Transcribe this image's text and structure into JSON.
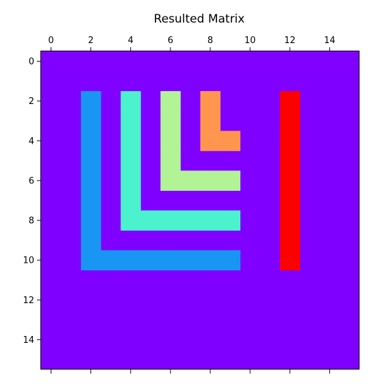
{
  "chart_data": {
    "type": "heatmap",
    "title": "Resulted Matrix",
    "xlabel": "",
    "ylabel": "",
    "rows": 16,
    "cols": 16,
    "x_ticks": [
      0,
      2,
      4,
      6,
      8,
      10,
      12,
      14
    ],
    "y_ticks": [
      0,
      2,
      4,
      6,
      8,
      10,
      12,
      14
    ],
    "x_tick_labels": [
      "0",
      "2",
      "4",
      "6",
      "8",
      "10",
      "12",
      "14"
    ],
    "y_tick_labels": [
      "0",
      "2",
      "4",
      "6",
      "8",
      "10",
      "12",
      "14"
    ],
    "x_axis_position": "top",
    "colormap": "rainbow",
    "grid": false,
    "background_value": 0,
    "value_colors": {
      "0": "#8000ff",
      "1": "#1996f3",
      "2": "#4cf2ce",
      "3": "#b2f396",
      "4": "#ff964f",
      "5": "#ff0000"
    },
    "nonzero_cells": [
      {
        "row": 2,
        "col": 2,
        "value": 1
      },
      {
        "row": 3,
        "col": 2,
        "value": 1
      },
      {
        "row": 4,
        "col": 2,
        "value": 1
      },
      {
        "row": 5,
        "col": 2,
        "value": 1
      },
      {
        "row": 6,
        "col": 2,
        "value": 1
      },
      {
        "row": 7,
        "col": 2,
        "value": 1
      },
      {
        "row": 8,
        "col": 2,
        "value": 1
      },
      {
        "row": 9,
        "col": 2,
        "value": 1
      },
      {
        "row": 10,
        "col": 2,
        "value": 1
      },
      {
        "row": 10,
        "col": 3,
        "value": 1
      },
      {
        "row": 10,
        "col": 4,
        "value": 1
      },
      {
        "row": 10,
        "col": 5,
        "value": 1
      },
      {
        "row": 10,
        "col": 6,
        "value": 1
      },
      {
        "row": 10,
        "col": 7,
        "value": 1
      },
      {
        "row": 10,
        "col": 8,
        "value": 1
      },
      {
        "row": 10,
        "col": 9,
        "value": 1
      },
      {
        "row": 2,
        "col": 4,
        "value": 2
      },
      {
        "row": 3,
        "col": 4,
        "value": 2
      },
      {
        "row": 4,
        "col": 4,
        "value": 2
      },
      {
        "row": 5,
        "col": 4,
        "value": 2
      },
      {
        "row": 6,
        "col": 4,
        "value": 2
      },
      {
        "row": 7,
        "col": 4,
        "value": 2
      },
      {
        "row": 8,
        "col": 4,
        "value": 2
      },
      {
        "row": 8,
        "col": 5,
        "value": 2
      },
      {
        "row": 8,
        "col": 6,
        "value": 2
      },
      {
        "row": 8,
        "col": 7,
        "value": 2
      },
      {
        "row": 8,
        "col": 8,
        "value": 2
      },
      {
        "row": 8,
        "col": 9,
        "value": 2
      },
      {
        "row": 2,
        "col": 6,
        "value": 3
      },
      {
        "row": 3,
        "col": 6,
        "value": 3
      },
      {
        "row": 4,
        "col": 6,
        "value": 3
      },
      {
        "row": 5,
        "col": 6,
        "value": 3
      },
      {
        "row": 6,
        "col": 6,
        "value": 3
      },
      {
        "row": 6,
        "col": 7,
        "value": 3
      },
      {
        "row": 6,
        "col": 8,
        "value": 3
      },
      {
        "row": 6,
        "col": 9,
        "value": 3
      },
      {
        "row": 2,
        "col": 8,
        "value": 4
      },
      {
        "row": 3,
        "col": 8,
        "value": 4
      },
      {
        "row": 4,
        "col": 8,
        "value": 4
      },
      {
        "row": 4,
        "col": 9,
        "value": 4
      },
      {
        "row": 2,
        "col": 12,
        "value": 5
      },
      {
        "row": 3,
        "col": 12,
        "value": 5
      },
      {
        "row": 4,
        "col": 12,
        "value": 5
      },
      {
        "row": 5,
        "col": 12,
        "value": 5
      },
      {
        "row": 6,
        "col": 12,
        "value": 5
      },
      {
        "row": 7,
        "col": 12,
        "value": 5
      },
      {
        "row": 8,
        "col": 12,
        "value": 5
      },
      {
        "row": 9,
        "col": 12,
        "value": 5
      },
      {
        "row": 10,
        "col": 12,
        "value": 5
      }
    ]
  }
}
